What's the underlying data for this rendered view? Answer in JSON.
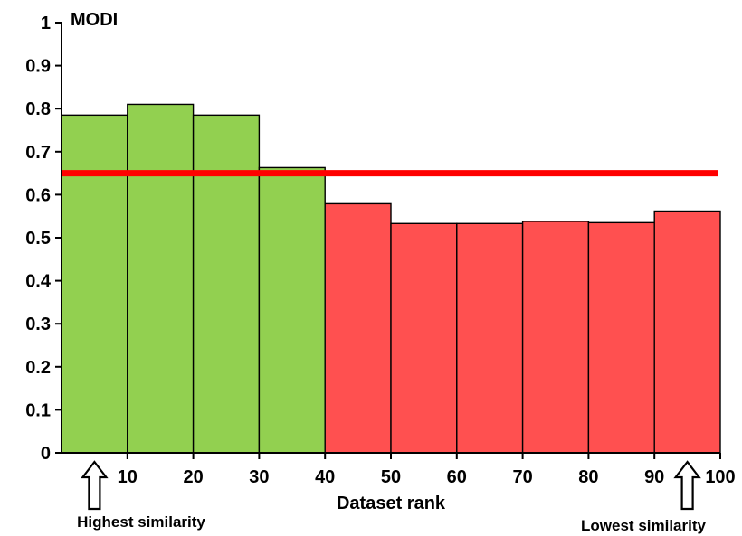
{
  "chart_data": {
    "type": "bar",
    "title": "",
    "ylabel": "MODI",
    "xlabel": "Dataset rank",
    "ylim": [
      0,
      1
    ],
    "xlim": [
      0,
      100
    ],
    "yticks": [
      "0",
      "0.1",
      "0.2",
      "0.3",
      "0.4",
      "0.5",
      "0.6",
      "0.7",
      "0.8",
      "0.9",
      "1"
    ],
    "xticks": [
      "10",
      "20",
      "30",
      "40",
      "50",
      "60",
      "70",
      "80",
      "90",
      "100"
    ],
    "bins": [
      {
        "start": 0,
        "end": 10,
        "value": 0.785
      },
      {
        "start": 10,
        "end": 20,
        "value": 0.81
      },
      {
        "start": 20,
        "end": 30,
        "value": 0.785
      },
      {
        "start": 30,
        "end": 40,
        "value": 0.663
      },
      {
        "start": 40,
        "end": 50,
        "value": 0.579
      },
      {
        "start": 50,
        "end": 60,
        "value": 0.533
      },
      {
        "start": 60,
        "end": 70,
        "value": 0.533
      },
      {
        "start": 70,
        "end": 80,
        "value": 0.538
      },
      {
        "start": 80,
        "end": 90,
        "value": 0.535
      },
      {
        "start": 90,
        "end": 100,
        "value": 0.562
      }
    ],
    "threshold": 0.65,
    "colors": {
      "above_threshold": "#92d050",
      "below_threshold": "#ff5050",
      "threshold_line": "#ff0000"
    },
    "annotations": [
      {
        "text": "Highest similarity",
        "x": 5,
        "icon": "up-arrow-icon"
      },
      {
        "text": "Lowest similarity",
        "x": 95,
        "icon": "up-arrow-icon"
      }
    ],
    "grid": false
  }
}
